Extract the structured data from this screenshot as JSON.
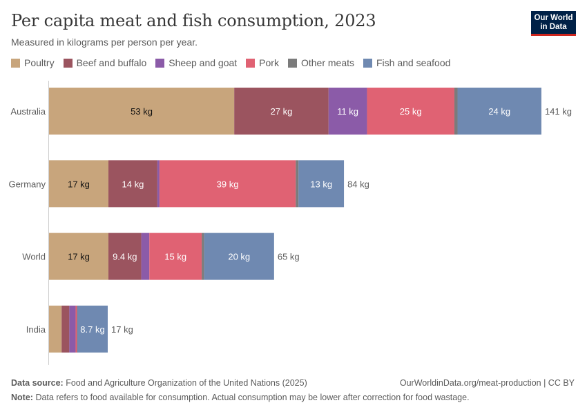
{
  "header": {
    "title": "Per capita meat and fish consumption, 2023",
    "subtitle": "Measured in kilograms per person per year.",
    "logo_line1": "Our World",
    "logo_line2": "in Data"
  },
  "footer": {
    "source_label": "Data source:",
    "source_text": "Food and Agriculture Organization of the United Nations (2025)",
    "url": "OurWorldinData.org/meat-production | CC BY",
    "note_label": "Note:",
    "note_text": "Data refers to food available for consumption. Actual consumption may be lower after correction for food wastage."
  },
  "chart_data": {
    "type": "bar",
    "orientation": "horizontal",
    "stacked": true,
    "categories": [
      "Australia",
      "Germany",
      "World",
      "India"
    ],
    "series": [
      {
        "name": "Poultry",
        "color": "#c8a57c",
        "values": [
          53,
          17,
          17,
          3.6
        ],
        "labels": [
          "53 kg",
          "17 kg",
          "17 kg",
          ""
        ]
      },
      {
        "name": "Beef and buffalo",
        "color": "#9b545f",
        "values": [
          27,
          14,
          9.4,
          2.2
        ],
        "labels": [
          "27 kg",
          "14 kg",
          "9.4 kg",
          ""
        ]
      },
      {
        "name": "Sheep and goat",
        "color": "#8b5ba8",
        "values": [
          11,
          0.6,
          2.3,
          1.8
        ],
        "labels": [
          "11 kg",
          "",
          "",
          ""
        ]
      },
      {
        "name": "Pork",
        "color": "#e06273",
        "values": [
          25,
          39,
          15,
          0.4
        ],
        "labels": [
          "25 kg",
          "39 kg",
          "15 kg",
          ""
        ]
      },
      {
        "name": "Other meats",
        "color": "#7b7b7b",
        "values": [
          0.9,
          0.8,
          0.7,
          0.1
        ],
        "labels": [
          "",
          "",
          "",
          ""
        ]
      },
      {
        "name": "Fish and seafood",
        "color": "#6f89b1",
        "values": [
          24,
          13,
          20,
          8.7
        ],
        "labels": [
          "24 kg",
          "13 kg",
          "20 kg",
          "8.7 kg"
        ]
      }
    ],
    "totals": [
      "141 kg",
      "84 kg",
      "65 kg",
      "17 kg"
    ],
    "xlim": [
      0,
      141
    ],
    "grid": false,
    "legend_position": "top-left"
  }
}
